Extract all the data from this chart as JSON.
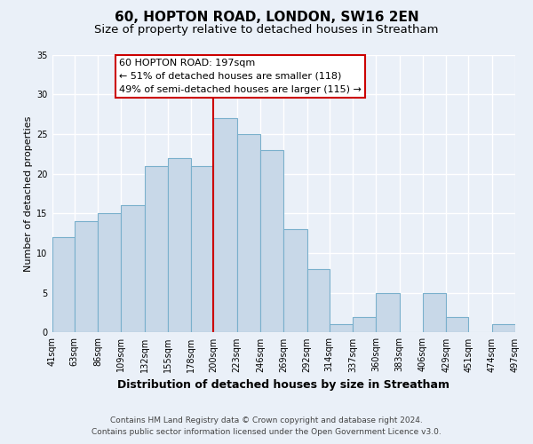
{
  "title": "60, HOPTON ROAD, LONDON, SW16 2EN",
  "subtitle": "Size of property relative to detached houses in Streatham",
  "xlabel": "Distribution of detached houses by size in Streatham",
  "ylabel": "Number of detached properties",
  "bin_edges": [
    41,
    63,
    86,
    109,
    132,
    155,
    178,
    200,
    223,
    246,
    269,
    292,
    314,
    337,
    360,
    383,
    406,
    429,
    451,
    474,
    497
  ],
  "bar_heights": [
    12,
    14,
    15,
    16,
    21,
    22,
    21,
    27,
    25,
    23,
    13,
    8,
    1,
    2,
    5,
    0,
    5,
    2,
    0,
    1
  ],
  "bar_color": "#c8d8e8",
  "bar_edgecolor": "#7ab0cc",
  "vline_x": 200,
  "vline_color": "#cc0000",
  "annotation_title": "60 HOPTON ROAD: 197sqm",
  "annotation_line1": "← 51% of detached houses are smaller (118)",
  "annotation_line2": "49% of semi-detached houses are larger (115) →",
  "annotation_box_edgecolor": "#cc0000",
  "annotation_box_facecolor": "#ffffff",
  "ylim": [
    0,
    35
  ],
  "yticks": [
    0,
    5,
    10,
    15,
    20,
    25,
    30,
    35
  ],
  "footer_line1": "Contains HM Land Registry data © Crown copyright and database right 2024.",
  "footer_line2": "Contains public sector information licensed under the Open Government Licence v3.0.",
  "background_color": "#eaf0f8",
  "plot_background_color": "#eaf0f8",
  "grid_color": "#ffffff",
  "title_fontsize": 11,
  "subtitle_fontsize": 9.5,
  "xlabel_fontsize": 9,
  "ylabel_fontsize": 8,
  "tick_fontsize": 7,
  "footer_fontsize": 6.5,
  "annotation_title_fontsize": 8.5,
  "annotation_line_fontsize": 8
}
